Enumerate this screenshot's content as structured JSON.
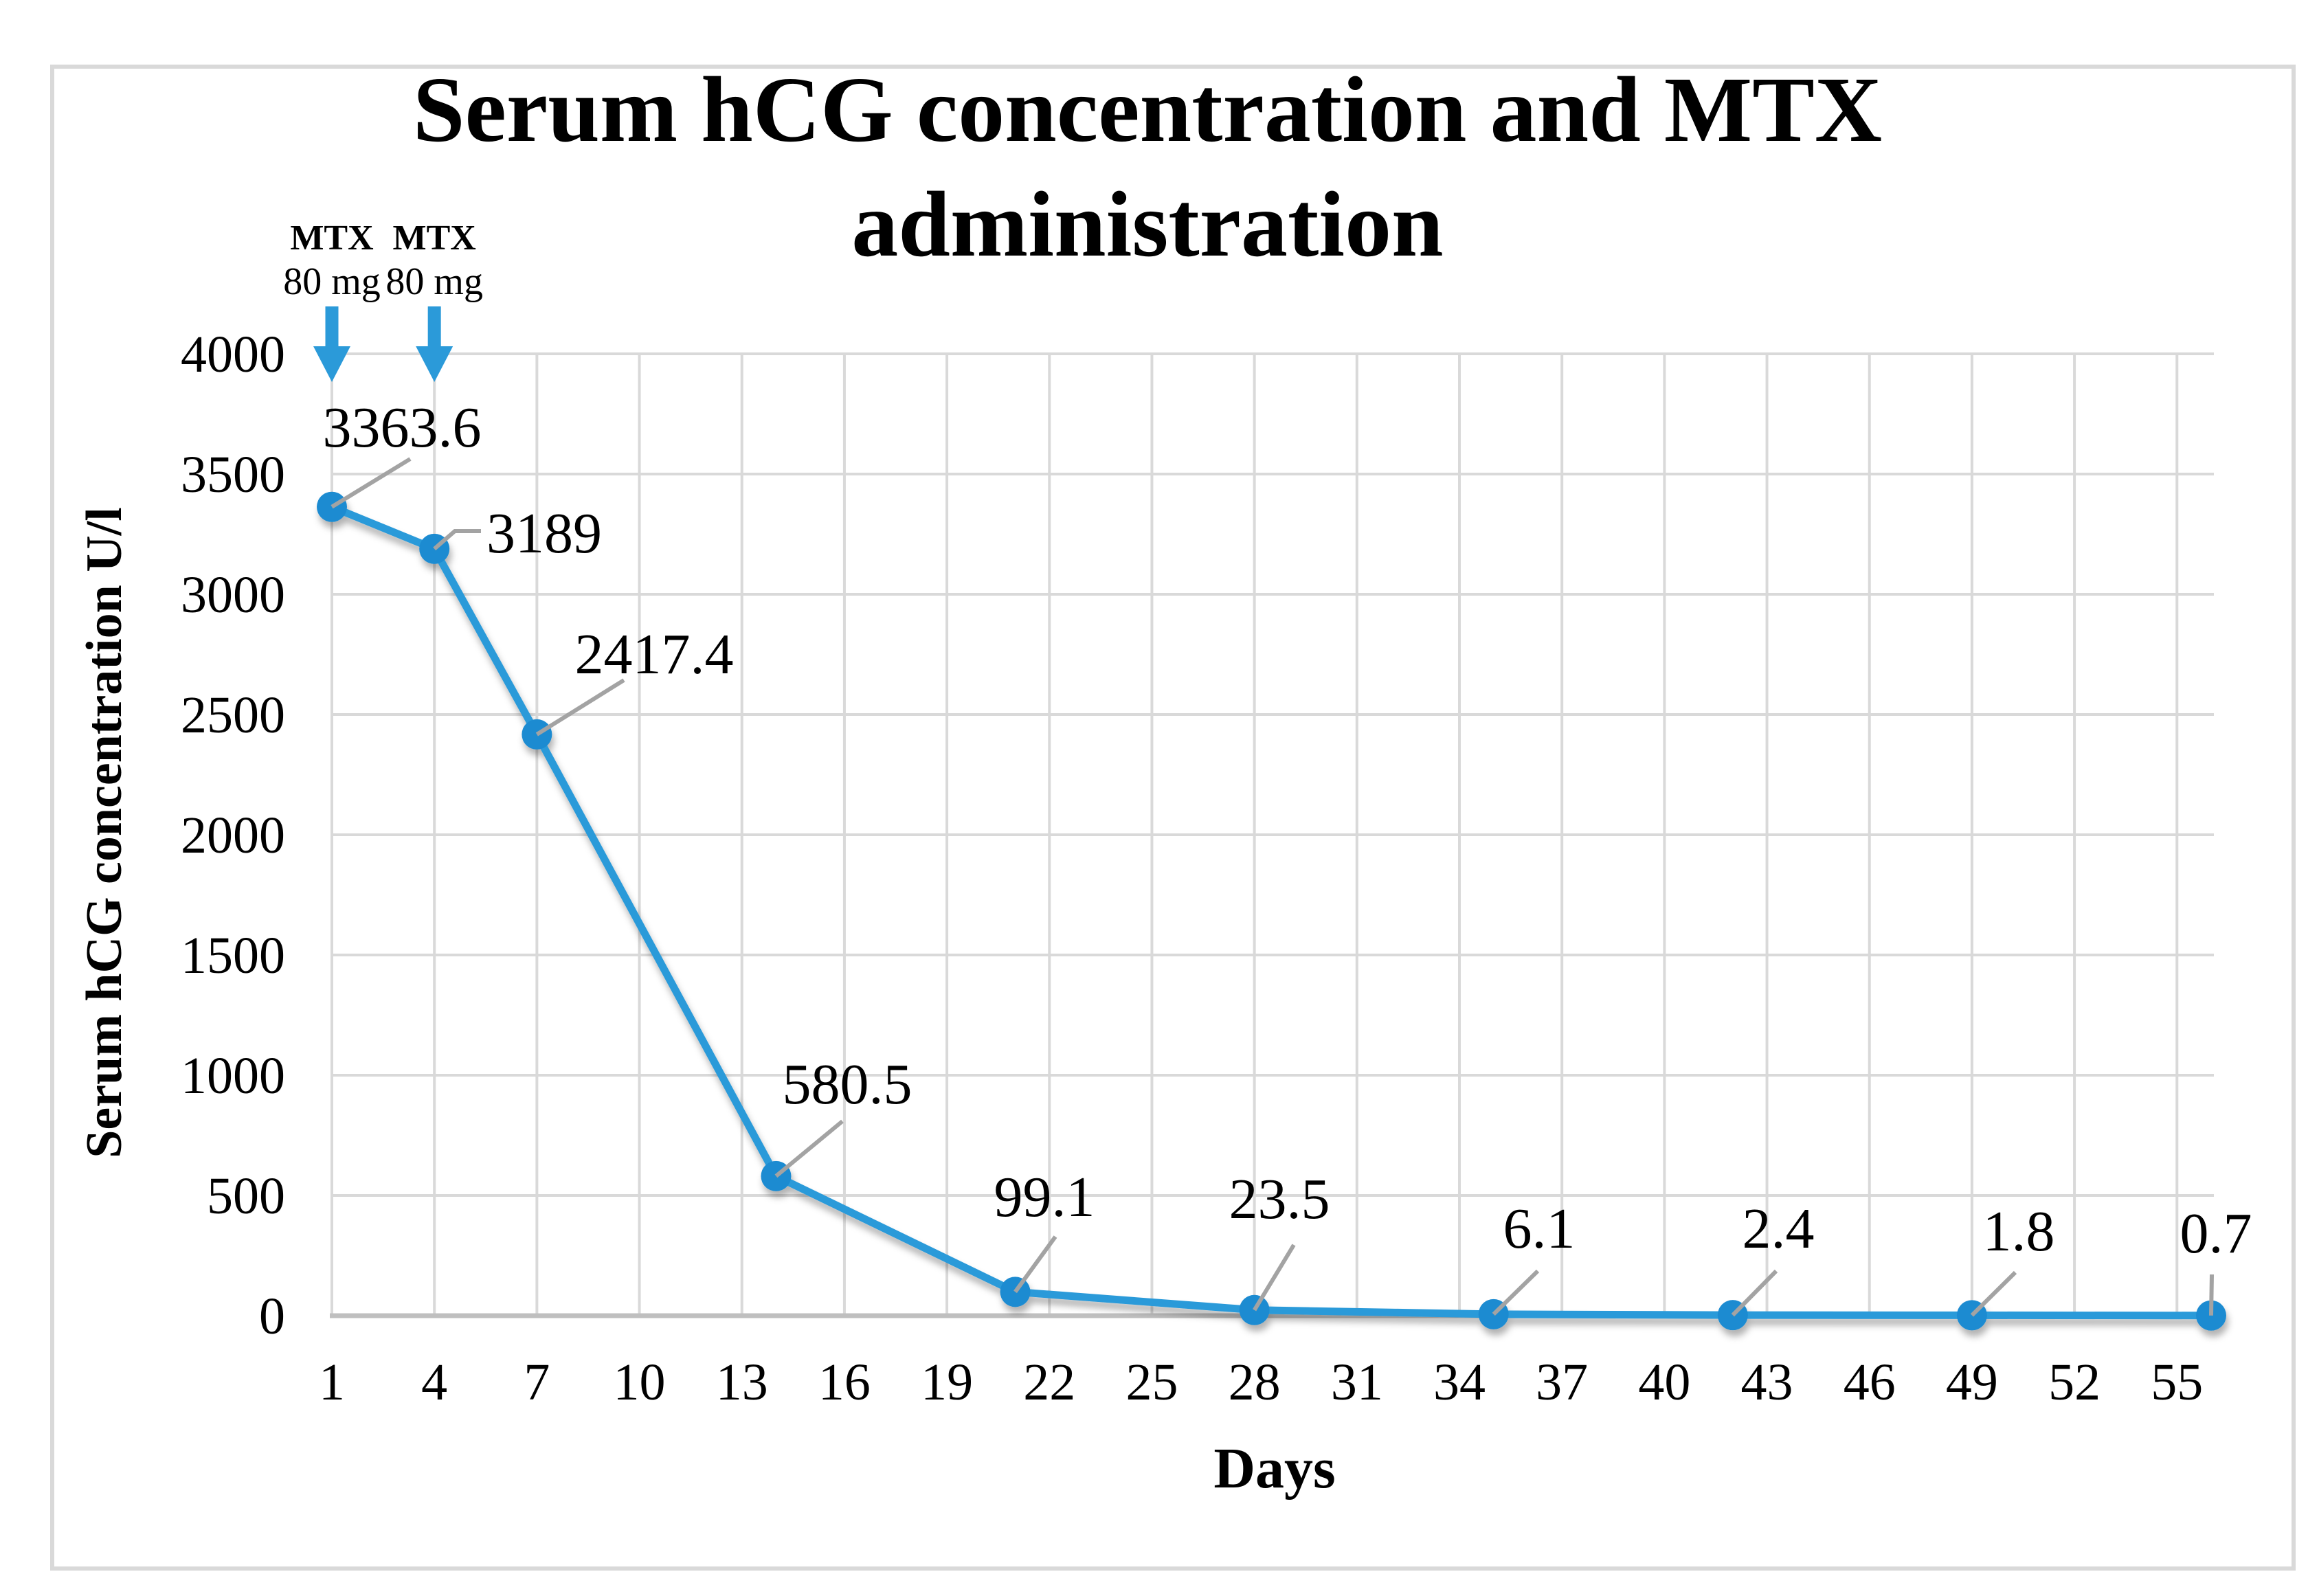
{
  "chart_data": {
    "type": "line",
    "title": "Serum hCG concentration and MTX administration",
    "title_lines": [
      "Serum hCG concentration and MTX",
      "administration"
    ],
    "xlabel": "Days",
    "ylabel": "Serum hCG concentration U/l",
    "x": [
      1,
      4,
      7,
      14,
      21,
      28,
      35,
      42,
      49,
      56
    ],
    "y": [
      3363.6,
      3189,
      2417.4,
      580.5,
      99.1,
      23.5,
      6.1,
      2.4,
      1.8,
      0.7
    ],
    "point_labels": [
      "3363.6",
      "3189",
      "2417.4",
      "580.5",
      "99.1",
      "23.5",
      "6.1",
      "2.4",
      "1.8",
      "0.7"
    ],
    "x_ticks": [
      1,
      4,
      7,
      10,
      13,
      16,
      19,
      22,
      25,
      28,
      31,
      34,
      37,
      40,
      43,
      46,
      49,
      52,
      55
    ],
    "y_ticks": [
      0,
      500,
      1000,
      1500,
      2000,
      2500,
      3000,
      3500,
      4000
    ],
    "xlim": [
      1,
      56
    ],
    "ylim": [
      0,
      4000
    ],
    "grid": true,
    "legend": "none",
    "annotations": [
      {
        "label_line1": "MTX",
        "label_line2": "80 mg",
        "day": 1
      },
      {
        "label_line1": "MTX",
        "label_line2": "80 mg",
        "day": 4
      }
    ],
    "colors": {
      "series_line": "#2B9AD9",
      "marker_fill": "#1D8BD1",
      "arrow": "#2B9AD9",
      "gridline": "#D9D9D9",
      "axis_line": "#BFBFBF",
      "leader_line": "#A3A3A3",
      "text": "#000000",
      "border": "#D9D9D9",
      "background": "#FFFFFF"
    }
  }
}
